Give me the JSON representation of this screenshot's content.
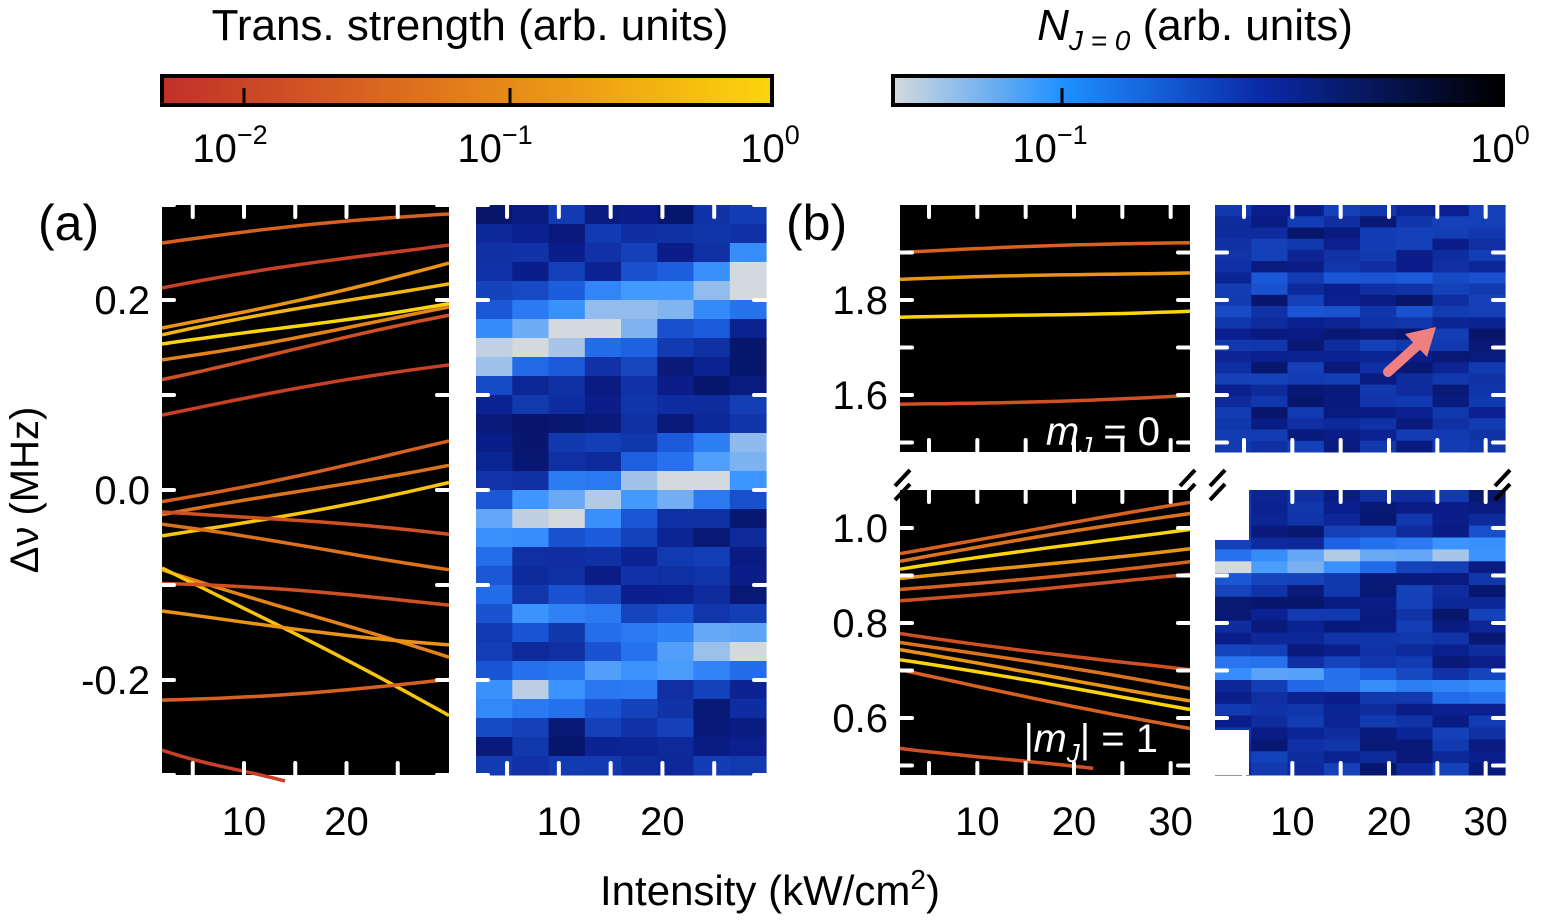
{
  "colorbars": {
    "trans": {
      "title": "Trans. strength (arb. units)",
      "ticks": [
        "10",
        "10",
        "10"
      ],
      "exps": [
        "−2",
        "−1",
        "0"
      ],
      "gradient": [
        "#c0302a",
        "#d9661f",
        "#eea014",
        "#fbd50b"
      ]
    },
    "pop": {
      "title_n": "N",
      "title_sub": "J = 0",
      "title_rest": " (arb. units)",
      "ticks": [
        "10",
        "10"
      ],
      "exps": [
        "−1",
        "0"
      ],
      "gradient": [
        "#d4d9de",
        "#1e90ff",
        "#0a2aa8",
        "#000000"
      ]
    }
  },
  "panels": {
    "a": {
      "label": "(a)"
    },
    "b": {
      "label": "(b)",
      "upper_note": "m",
      "upper_note_sub": "J",
      "upper_note_rest": " = 0",
      "lower_note": "|m",
      "lower_note_sub": "J",
      "lower_note_rest": "| = 1"
    }
  },
  "axes": {
    "ylabel": "Δν (MHz)",
    "xlabel": "Intensity (kW/cm",
    "xlabel_sup": "2",
    "xlabel_end": ")"
  },
  "chart_data": {
    "type": "line",
    "x_range_a": [
      2,
      30
    ],
    "x_range_b": [
      2,
      32
    ],
    "ylim_a": [
      -0.3,
      0.3
    ],
    "ylim_b_upper": [
      1.48,
      2.0
    ],
    "ylim_b_lower": [
      0.48,
      1.08
    ],
    "xticks_a": [
      10,
      20
    ],
    "xticks_b": [
      10,
      20,
      30
    ],
    "yticks_a": [
      "0.2",
      "0.0",
      "-0.2"
    ],
    "yticks_a_values": [
      0.2,
      0.0,
      -0.2
    ],
    "yticks_b_upper": [
      "1.8",
      "1.6"
    ],
    "yticks_b_upper_values": [
      1.8,
      1.6
    ],
    "yticks_b_lower": [
      "1.0",
      "0.8",
      "0.6"
    ],
    "yticks_b_lower_values": [
      1.0,
      0.8,
      0.6
    ],
    "lines_a": [
      {
        "x0": 2,
        "x1": 30,
        "y0": 0.26,
        "y1": 0.29,
        "s": 0.3
      },
      {
        "x0": 2,
        "x1": 30,
        "y0": 0.16,
        "y1": 0.22,
        "s": 0.8
      },
      {
        "x0": 2,
        "x1": 30,
        "y0": 0.15,
        "y1": 0.2,
        "s": 1.0
      },
      {
        "x0": 2,
        "x1": 30,
        "y0": 0.17,
        "y1": 0.24,
        "s": 0.6
      },
      {
        "x0": 2,
        "x1": 30,
        "y0": 0.14,
        "y1": 0.19,
        "s": 0.5
      },
      {
        "x0": 2,
        "x1": 30,
        "y0": 0.12,
        "y1": 0.18,
        "s": 0.2
      },
      {
        "x0": 2,
        "x1": 30,
        "y0": 0.08,
        "y1": 0.13,
        "s": 0.1
      },
      {
        "x0": 2,
        "x1": 30,
        "y0": 0.21,
        "y1": 0.26,
        "s": 0.1
      },
      {
        "x0": 2,
        "x1": 30,
        "y0": -0.03,
        "y1": 0.03,
        "s": 0.4
      },
      {
        "x0": 2,
        "x1": 30,
        "y0": -0.05,
        "y1": 0.01,
        "s": 0.9
      },
      {
        "x0": 2,
        "x1": 30,
        "y0": -0.01,
        "y1": 0.05,
        "s": 0.3
      },
      {
        "x0": 2,
        "x1": 30,
        "y0": -0.08,
        "y1": -0.18,
        "s": 0.5
      },
      {
        "x0": 2,
        "x1": 30,
        "y0": -0.08,
        "y1": -0.24,
        "s": 0.9
      },
      {
        "x0": 2,
        "x1": 30,
        "y0": -0.1,
        "y1": -0.12,
        "s": 0.2
      },
      {
        "x0": 2,
        "x1": 30,
        "y0": -0.04,
        "y1": -0.08,
        "s": 0.4
      },
      {
        "x0": 2,
        "x1": 30,
        "y0": -0.13,
        "y1": -0.16,
        "s": 0.6
      },
      {
        "x0": 2,
        "x1": 30,
        "y0": -0.22,
        "y1": -0.2,
        "s": 0.3
      },
      {
        "x0": 2,
        "x1": 14,
        "y0": -0.27,
        "y1": -0.31,
        "s": 0.1
      },
      {
        "x0": 2,
        "x1": 30,
        "y0": -0.02,
        "y1": -0.05,
        "s": 0.2
      }
    ],
    "lines_b_upper": [
      {
        "x0": 2,
        "x1": 32,
        "y0": 1.9,
        "y1": 1.92,
        "s": 0.3
      },
      {
        "x0": 2,
        "x1": 32,
        "y0": 1.84,
        "y1": 1.86,
        "s": 0.6
      },
      {
        "x0": 2,
        "x1": 32,
        "y0": 1.76,
        "y1": 1.78,
        "s": 1.0
      },
      {
        "x0": 2,
        "x1": 32,
        "y0": 1.58,
        "y1": 1.6,
        "s": 0.2
      }
    ],
    "lines_b_lower": [
      {
        "x0": 2,
        "x1": 32,
        "y0": 0.93,
        "y1": 1.03,
        "s": 0.4
      },
      {
        "x0": 2,
        "x1": 32,
        "y0": 0.91,
        "y1": 1.0,
        "s": 1.0
      },
      {
        "x0": 2,
        "x1": 32,
        "y0": 0.89,
        "y1": 0.96,
        "s": 0.6
      },
      {
        "x0": 2,
        "x1": 32,
        "y0": 0.87,
        "y1": 0.93,
        "s": 0.3
      },
      {
        "x0": 2,
        "x1": 32,
        "y0": 0.85,
        "y1": 0.9,
        "s": 0.2
      },
      {
        "x0": 2,
        "x1": 32,
        "y0": 0.95,
        "y1": 1.05,
        "s": 0.3
      },
      {
        "x0": 2,
        "x1": 32,
        "y0": 0.76,
        "y1": 0.66,
        "s": 0.4
      },
      {
        "x0": 2,
        "x1": 32,
        "y0": 0.72,
        "y1": 0.62,
        "s": 1.0
      },
      {
        "x0": 2,
        "x1": 32,
        "y0": 0.74,
        "y1": 0.64,
        "s": 0.6
      },
      {
        "x0": 2,
        "x1": 32,
        "y0": 0.7,
        "y1": 0.58,
        "s": 0.3
      },
      {
        "x0": 2,
        "x1": 32,
        "y0": 0.78,
        "y1": 0.7,
        "s": 0.2
      },
      {
        "x0": 2,
        "x1": 22,
        "y0": 0.54,
        "y1": 0.49,
        "s": 0.2
      }
    ],
    "heat_a": {
      "x": [
        3.5,
        7,
        10.5,
        14,
        17.5,
        21,
        24.5,
        28
      ],
      "y_min": -0.3,
      "y_max": 0.3,
      "rows": 30,
      "ridges": [
        {
          "y0": 0.15,
          "y1": 0.22,
          "w": 0.03,
          "amp": 0.8
        },
        {
          "y0": -0.04,
          "y1": 0.03,
          "w": 0.03,
          "amp": 0.7
        },
        {
          "y0": -0.22,
          "y1": -0.17,
          "w": 0.025,
          "amp": 0.5
        },
        {
          "y0": -0.12,
          "y1": -0.16,
          "w": 0.02,
          "amp": 0.35
        }
      ]
    },
    "heat_b_upper": {
      "x": [
        3.75,
        7.5,
        11.25,
        15,
        18.75,
        22.5,
        26.25,
        30
      ],
      "y_min": 1.48,
      "y_max": 2.0,
      "rows": 22,
      "ridges": [
        {
          "y0": 1.835,
          "y1": 1.835,
          "w": 0.008,
          "amp": 0.9
        },
        {
          "y0": 1.765,
          "y1": 1.765,
          "w": 0.008,
          "amp": 0.85
        }
      ]
    },
    "heat_b_lower": {
      "x": [
        3.75,
        7.5,
        11.25,
        15,
        18.75,
        22.5,
        26.25,
        30
      ],
      "y_min": 0.48,
      "y_max": 1.08,
      "rows": 24,
      "ridges": [
        {
          "y0": 0.92,
          "y1": 0.96,
          "w": 0.025,
          "amp": 0.7
        },
        {
          "y0": 0.7,
          "y1": 0.66,
          "w": 0.025,
          "amp": 0.45
        }
      ]
    }
  }
}
